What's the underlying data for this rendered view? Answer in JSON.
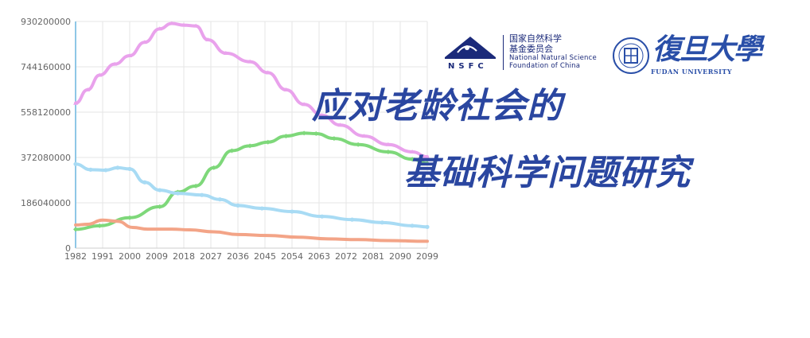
{
  "chart_data": {
    "type": "line",
    "x_ticks": [
      "1982",
      "1991",
      "2000",
      "2009",
      "2018",
      "2027",
      "2036",
      "2045",
      "2054",
      "2063",
      "2072",
      "2081",
      "2090",
      "2099"
    ],
    "y_ticks": [
      "0",
      "186040000",
      "372080000",
      "558120000",
      "744160000",
      "930200000"
    ],
    "xlim": [
      1982,
      2099
    ],
    "ylim": [
      0,
      930200000
    ],
    "grid": true,
    "series": [
      {
        "color": "#e9a2ec",
        "marker": "triangle",
        "points": [
          [
            1982,
            595000000
          ],
          [
            1986,
            650000000
          ],
          [
            1990,
            710000000
          ],
          [
            1995,
            755000000
          ],
          [
            2000,
            790000000
          ],
          [
            2005,
            845000000
          ],
          [
            2010,
            900000000
          ],
          [
            2014,
            922000000
          ],
          [
            2018,
            915000000
          ],
          [
            2022,
            912000000
          ],
          [
            2026,
            855000000
          ],
          [
            2032,
            800000000
          ],
          [
            2040,
            765000000
          ],
          [
            2046,
            720000000
          ],
          [
            2052,
            650000000
          ],
          [
            2058,
            590000000
          ],
          [
            2064,
            545000000
          ],
          [
            2070,
            505000000
          ],
          [
            2078,
            460000000
          ],
          [
            2086,
            425000000
          ],
          [
            2094,
            395000000
          ],
          [
            2099,
            375000000
          ]
        ]
      },
      {
        "color": "#7ed87a",
        "marker": "diamond",
        "points": [
          [
            1982,
            77000000
          ],
          [
            1990,
            92000000
          ],
          [
            2000,
            125000000
          ],
          [
            2010,
            170000000
          ],
          [
            2016,
            230000000
          ],
          [
            2022,
            255000000
          ],
          [
            2028,
            330000000
          ],
          [
            2034,
            400000000
          ],
          [
            2040,
            420000000
          ],
          [
            2046,
            435000000
          ],
          [
            2052,
            460000000
          ],
          [
            2058,
            472000000
          ],
          [
            2062,
            470000000
          ],
          [
            2068,
            450000000
          ],
          [
            2076,
            425000000
          ],
          [
            2086,
            395000000
          ],
          [
            2094,
            365000000
          ],
          [
            2099,
            348000000
          ]
        ]
      },
      {
        "color": "#a8dbf4",
        "marker": "circle",
        "points": [
          [
            1982,
            345000000
          ],
          [
            1987,
            322000000
          ],
          [
            1992,
            320000000
          ],
          [
            1996,
            330000000
          ],
          [
            2000,
            325000000
          ],
          [
            2005,
            270000000
          ],
          [
            2010,
            238000000
          ],
          [
            2016,
            225000000
          ],
          [
            2024,
            218000000
          ],
          [
            2030,
            200000000
          ],
          [
            2036,
            175000000
          ],
          [
            2044,
            163000000
          ],
          [
            2054,
            150000000
          ],
          [
            2064,
            130000000
          ],
          [
            2074,
            117000000
          ],
          [
            2084,
            105000000
          ],
          [
            2094,
            92000000
          ],
          [
            2099,
            87000000
          ]
        ]
      },
      {
        "color": "#f3a487",
        "marker": "none",
        "points": [
          [
            1982,
            95000000
          ],
          [
            1986,
            98000000
          ],
          [
            1991,
            115000000
          ],
          [
            1996,
            110000000
          ],
          [
            2001,
            85000000
          ],
          [
            2006,
            78000000
          ],
          [
            2014,
            78000000
          ],
          [
            2020,
            75000000
          ],
          [
            2028,
            67000000
          ],
          [
            2036,
            56000000
          ],
          [
            2046,
            52000000
          ],
          [
            2056,
            45000000
          ],
          [
            2066,
            38000000
          ],
          [
            2076,
            35000000
          ],
          [
            2086,
            31000000
          ],
          [
            2099,
            28000000
          ]
        ]
      }
    ]
  },
  "logos": {
    "nsfc_acronym": "NSFC",
    "nsfc_cn": "国家自然科学\n基金委员会",
    "nsfc_cn_line1": "国家自然科学",
    "nsfc_cn_line2": "基金委员会",
    "nsfc_en_line1": "National Natural Science",
    "nsfc_en_line2": "Foundation of China",
    "fudan_cn": "復旦大學",
    "fudan_en": "FUDAN UNIVERSITY",
    "fudan_seal_text": "FUDAN UNIVERSITY",
    "fudan_seal_year": "1905",
    "brand_color": "#2a46a0"
  },
  "headline": {
    "line1": "应对老龄社会的",
    "line2": "基础科学问题研究"
  }
}
